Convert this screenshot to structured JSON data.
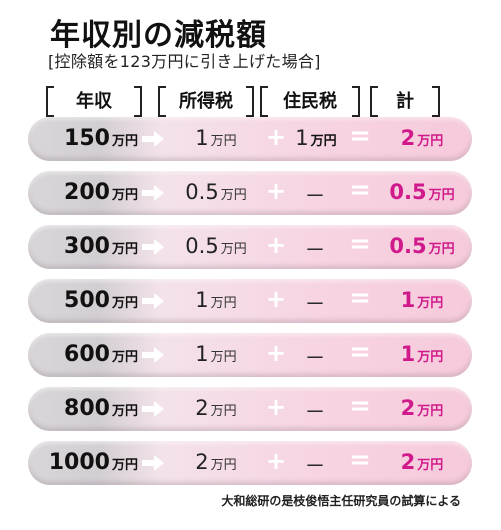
{
  "title": "年収別の減税額",
  "subtitle": "[控除額を123万円に引き上げた場合]",
  "headers": {
    "income": "年収",
    "income_tax": "所得税",
    "resident_tax": "住民税",
    "total": "計"
  },
  "source": "大和総研の是枝俊悟主任研究員の試算による",
  "colors": {
    "accent": "#d0198a",
    "row_left": "#d2ced2",
    "row_right": "#f6cadb"
  },
  "chart_data": {
    "type": "table",
    "columns": [
      "年収",
      "所得税",
      "住民税",
      "計"
    ],
    "rows": [
      {
        "income": "150",
        "income_unit": "万円",
        "income_tax": "1",
        "income_tax_unit": "万円",
        "plus": "+",
        "resident_tax": "1",
        "resident_tax_unit": "万円",
        "equal": "=",
        "total": "2",
        "total_unit": "万円"
      },
      {
        "income": "200",
        "income_unit": "万円",
        "income_tax": "0.5",
        "income_tax_unit": "万円",
        "plus": "+",
        "resident_tax": "－",
        "resident_tax_unit": "",
        "equal": "=",
        "total": "0.5",
        "total_unit": "万円"
      },
      {
        "income": "300",
        "income_unit": "万円",
        "income_tax": "0.5",
        "income_tax_unit": "万円",
        "plus": "+",
        "resident_tax": "－",
        "resident_tax_unit": "",
        "equal": "=",
        "total": "0.5",
        "total_unit": "万円"
      },
      {
        "income": "500",
        "income_unit": "万円",
        "income_tax": "1",
        "income_tax_unit": "万円",
        "plus": "+",
        "resident_tax": "－",
        "resident_tax_unit": "",
        "equal": "=",
        "total": "1",
        "total_unit": "万円"
      },
      {
        "income": "600",
        "income_unit": "万円",
        "income_tax": "1",
        "income_tax_unit": "万円",
        "plus": "+",
        "resident_tax": "－",
        "resident_tax_unit": "",
        "equal": "=",
        "total": "1",
        "total_unit": "万円"
      },
      {
        "income": "800",
        "income_unit": "万円",
        "income_tax": "2",
        "income_tax_unit": "万円",
        "plus": "+",
        "resident_tax": "－",
        "resident_tax_unit": "",
        "equal": "=",
        "total": "2",
        "total_unit": "万円"
      },
      {
        "income": "1000",
        "income_unit": "万円",
        "income_tax": "2",
        "income_tax_unit": "万円",
        "plus": "+",
        "resident_tax": "－",
        "resident_tax_unit": "",
        "equal": "=",
        "total": "2",
        "total_unit": "万円"
      }
    ]
  }
}
